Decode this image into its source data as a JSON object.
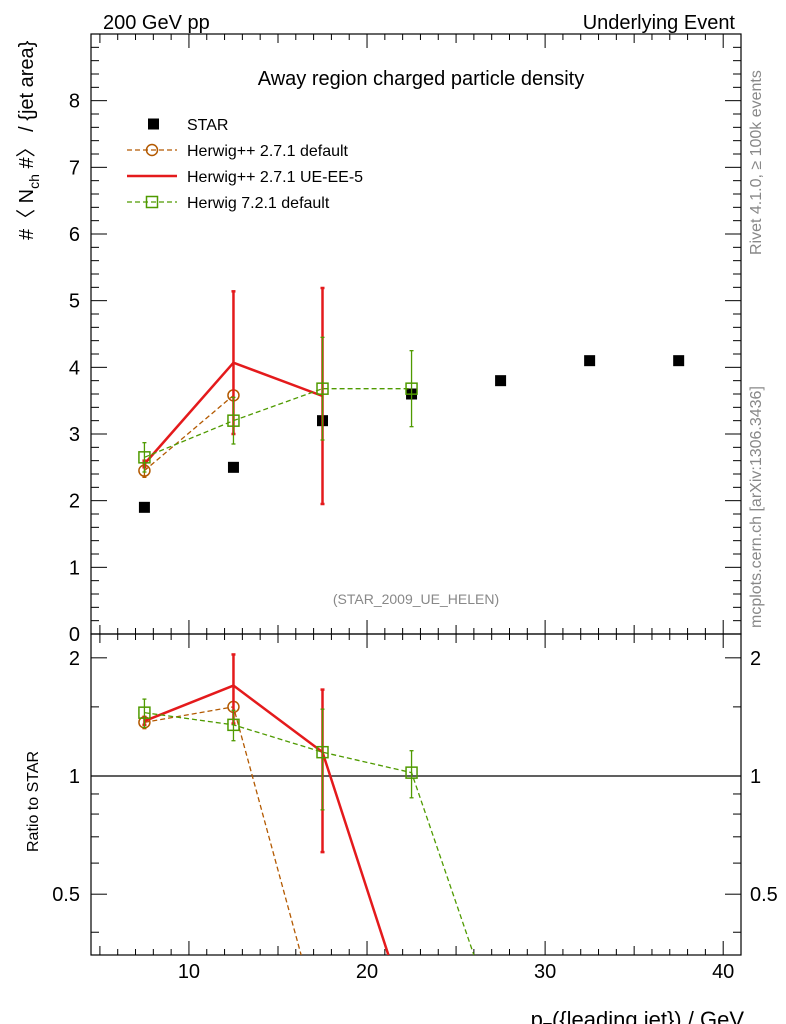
{
  "header": {
    "left": "200 GeV pp",
    "right": "Underlying Event"
  },
  "side": {
    "rivet": "Rivet 4.1.0, ≥ 100k events",
    "mcplots": "mcplots.cern.ch [arXiv:1306.3436]"
  },
  "chart_data": {
    "type": "scatter",
    "title": "Away region charged particle density",
    "watermark": "(STAR_2009_UE_HELEN)",
    "xlabel_parts": {
      "p": "p",
      "sub": "T",
      "rest": "({leading jet}) / GeV"
    },
    "ylabel_parts": {
      "pre": "#〈 N",
      "sub": "ch",
      "post": " #〉 / {jet area}"
    },
    "ratio_ylabel": "Ratio to STAR",
    "xlim": [
      4.5,
      41
    ],
    "ylim": [
      0,
      9
    ],
    "ratio_ylim": [
      0.35,
      2.3
    ],
    "xticks": [
      10,
      20,
      30,
      40
    ],
    "yticks": [
      0,
      1,
      2,
      3,
      4,
      5,
      6,
      7,
      8
    ],
    "ratio_yticks": [
      0.5,
      1,
      2
    ],
    "series": [
      {
        "name": "STAR",
        "style": "marker",
        "color": "#000000",
        "x": [
          7.5,
          12.5,
          17.5,
          22.5,
          27.5,
          32.5,
          37.5
        ],
        "y": [
          1.9,
          2.5,
          3.2,
          3.6,
          3.8,
          4.1,
          4.1
        ]
      },
      {
        "name": "Herwig++ 2.7.1 default",
        "style": "circle-dashed",
        "color": "#b35900",
        "x": [
          7.5,
          12.5
        ],
        "y": [
          2.45,
          3.58
        ],
        "err": [
          0.1,
          0.0
        ],
        "ratio": [
          1.37,
          1.5
        ],
        "ratio_err": [
          0.05,
          0.0
        ],
        "ratio_tail": [
          16.3,
          0.35
        ]
      },
      {
        "name": "Herwig++ 2.7.1 UE-EE-5",
        "style": "solid",
        "color": "#e41a1c",
        "x": [
          7.5,
          12.5,
          17.5
        ],
        "y": [
          2.55,
          4.07,
          3.57
        ],
        "err": [
          0.05,
          1.07,
          1.62
        ],
        "ratio": [
          1.38,
          1.7,
          1.15
        ],
        "ratio_err": [
          0.03,
          0.34,
          0.51
        ],
        "ratio_tail": [
          21.2,
          0.35
        ]
      },
      {
        "name": "Herwig 7.2.1 default",
        "style": "square-dashed",
        "color": "#4f9a00",
        "x": [
          7.5,
          12.5,
          17.5,
          22.5
        ],
        "y": [
          2.65,
          3.2,
          3.68,
          3.68
        ],
        "err": [
          0.22,
          0.35,
          0.77,
          0.57
        ],
        "ratio": [
          1.45,
          1.35,
          1.15,
          1.02
        ],
        "ratio_err": [
          0.12,
          0.12,
          0.33,
          0.14
        ],
        "ratio_tail": [
          26.0,
          0.35
        ]
      }
    ]
  }
}
